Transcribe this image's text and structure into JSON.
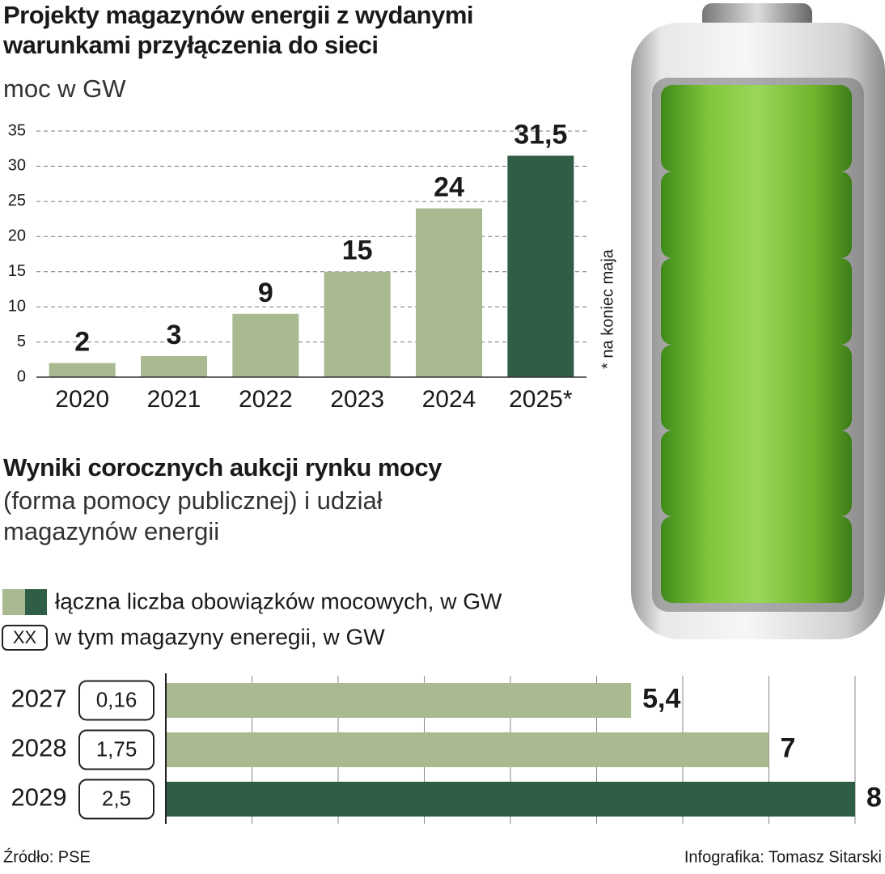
{
  "chart_data": [
    {
      "type": "bar",
      "title": "Projekty magazynów energii z wydanymi warunkami przyłączenia do sieci",
      "subtitle": "moc w GW",
      "categories": [
        "2020",
        "2021",
        "2022",
        "2023",
        "2024",
        "2025*"
      ],
      "values": [
        2,
        3,
        9,
        15,
        24,
        31.5
      ],
      "value_labels": [
        "2",
        "3",
        "9",
        "15",
        "24",
        "31,5"
      ],
      "colors": [
        "#a9ba90",
        "#a9ba90",
        "#a9ba90",
        "#a9ba90",
        "#a9ba90",
        "#2f5d45"
      ],
      "ylim": [
        0,
        35
      ],
      "yticks": [
        0,
        5,
        10,
        15,
        20,
        25,
        30,
        35
      ],
      "grid": true,
      "annotation": "* na koniec maja"
    },
    {
      "type": "bar",
      "orientation": "horizontal",
      "title": "Wyniki corocznych aukcji rynku mocy",
      "subtitle": "(forma pomocy publicznej) i udział magazynów energii",
      "categories": [
        "2027",
        "2028",
        "2029"
      ],
      "series": [
        {
          "name": "łączna liczba obowiązków mocowych, w GW",
          "values": [
            5.4,
            7,
            8
          ],
          "value_labels": [
            "5,4",
            "7",
            "8"
          ],
          "colors": [
            "#a9ba90",
            "#a9ba90",
            "#2f5d45"
          ]
        },
        {
          "name": "w tym magazyny eneregii, w GW",
          "symbol": "XX",
          "values": [
            0.16,
            1.75,
            2.5
          ],
          "value_labels": [
            "0,16",
            "1,75",
            "2,5"
          ]
        }
      ],
      "xlim": [
        0,
        8
      ],
      "xticks": [
        0,
        1,
        2,
        3,
        4,
        5,
        6,
        7,
        8
      ],
      "grid": true
    }
  ],
  "source": "Źródło: PSE",
  "credit": "Infografika: Tomasz Sitarski"
}
